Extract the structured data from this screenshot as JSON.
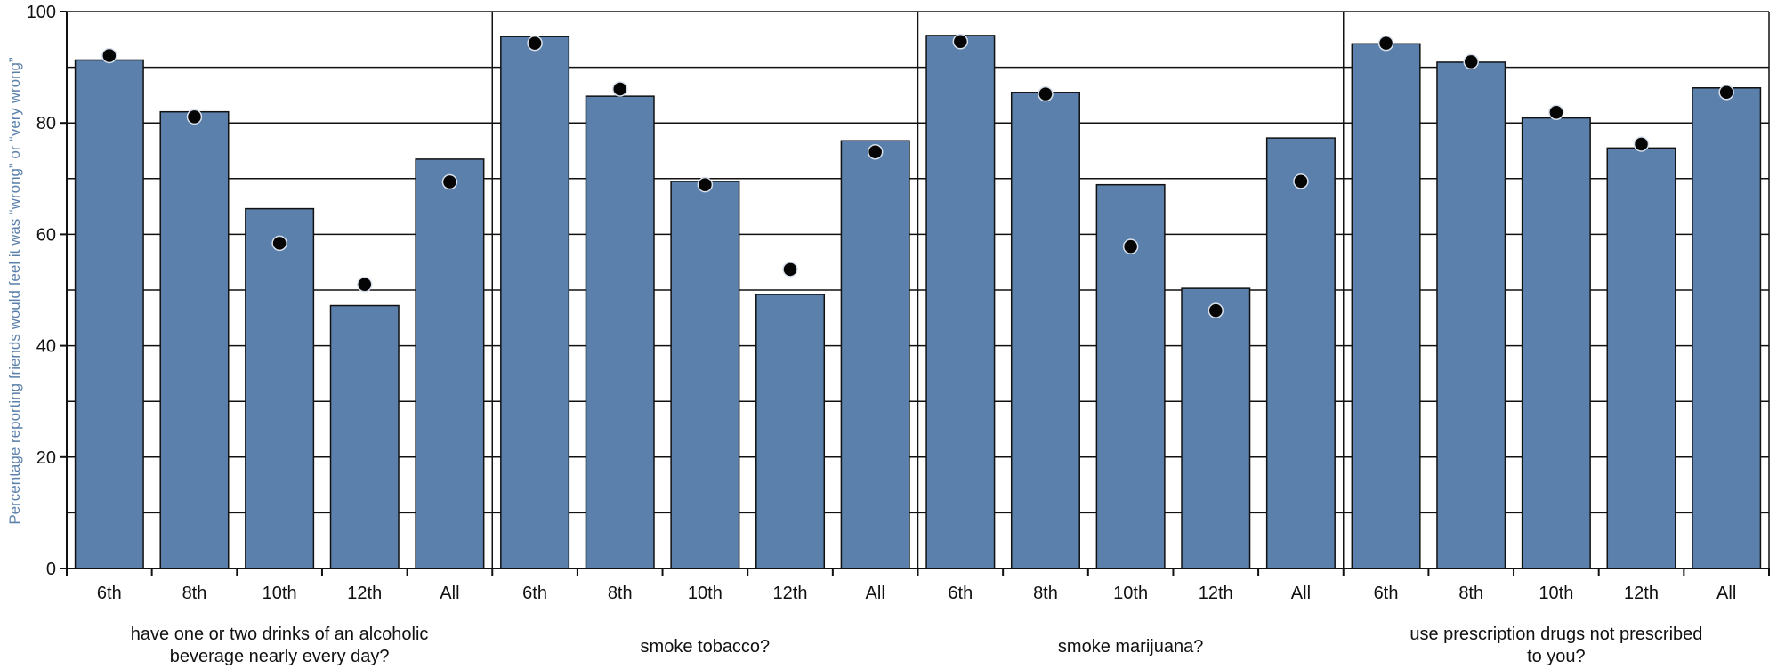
{
  "chart_data": {
    "type": "bar",
    "ylabel": "Percentage reporting friends would feel it was “wrong” or “very wrong”",
    "ylim": [
      0,
      100
    ],
    "yticks": [
      "0",
      "20",
      "40",
      "60",
      "80",
      "100"
    ],
    "grid": true,
    "categories": [
      "6th",
      "8th",
      "10th",
      "12th",
      "All"
    ],
    "groups": [
      {
        "label_lines": [
          "have one or two drinks of an alcoholic",
          "beverage nearly every day?"
        ],
        "bars": [
          91.3,
          82.0,
          64.6,
          47.2,
          73.5
        ],
        "points": [
          92.1,
          81.1,
          58.4,
          51.0,
          69.4
        ]
      },
      {
        "label_lines": [
          "smoke tobacco?"
        ],
        "bars": [
          95.5,
          84.8,
          69.5,
          49.2,
          76.8
        ],
        "points": [
          94.3,
          86.1,
          68.9,
          53.7,
          74.8
        ]
      },
      {
        "label_lines": [
          "smoke marijuana?"
        ],
        "bars": [
          95.7,
          85.5,
          68.9,
          50.3,
          77.3
        ],
        "points": [
          94.6,
          85.2,
          57.8,
          46.3,
          69.5
        ]
      },
      {
        "label_lines": [
          "use prescription drugs not prescribed",
          "to you?"
        ],
        "bars": [
          94.2,
          90.9,
          80.9,
          75.5,
          86.3
        ],
        "points": [
          94.3,
          91.0,
          81.9,
          76.2,
          85.5
        ]
      }
    ],
    "colors": {
      "bar_fill": "#5b80ab",
      "bar_stroke": "#111111",
      "point_fill": "#050505",
      "point_stroke": "#d8e0ec",
      "grid": "#111111",
      "ylabel": "#5b80ab"
    }
  }
}
